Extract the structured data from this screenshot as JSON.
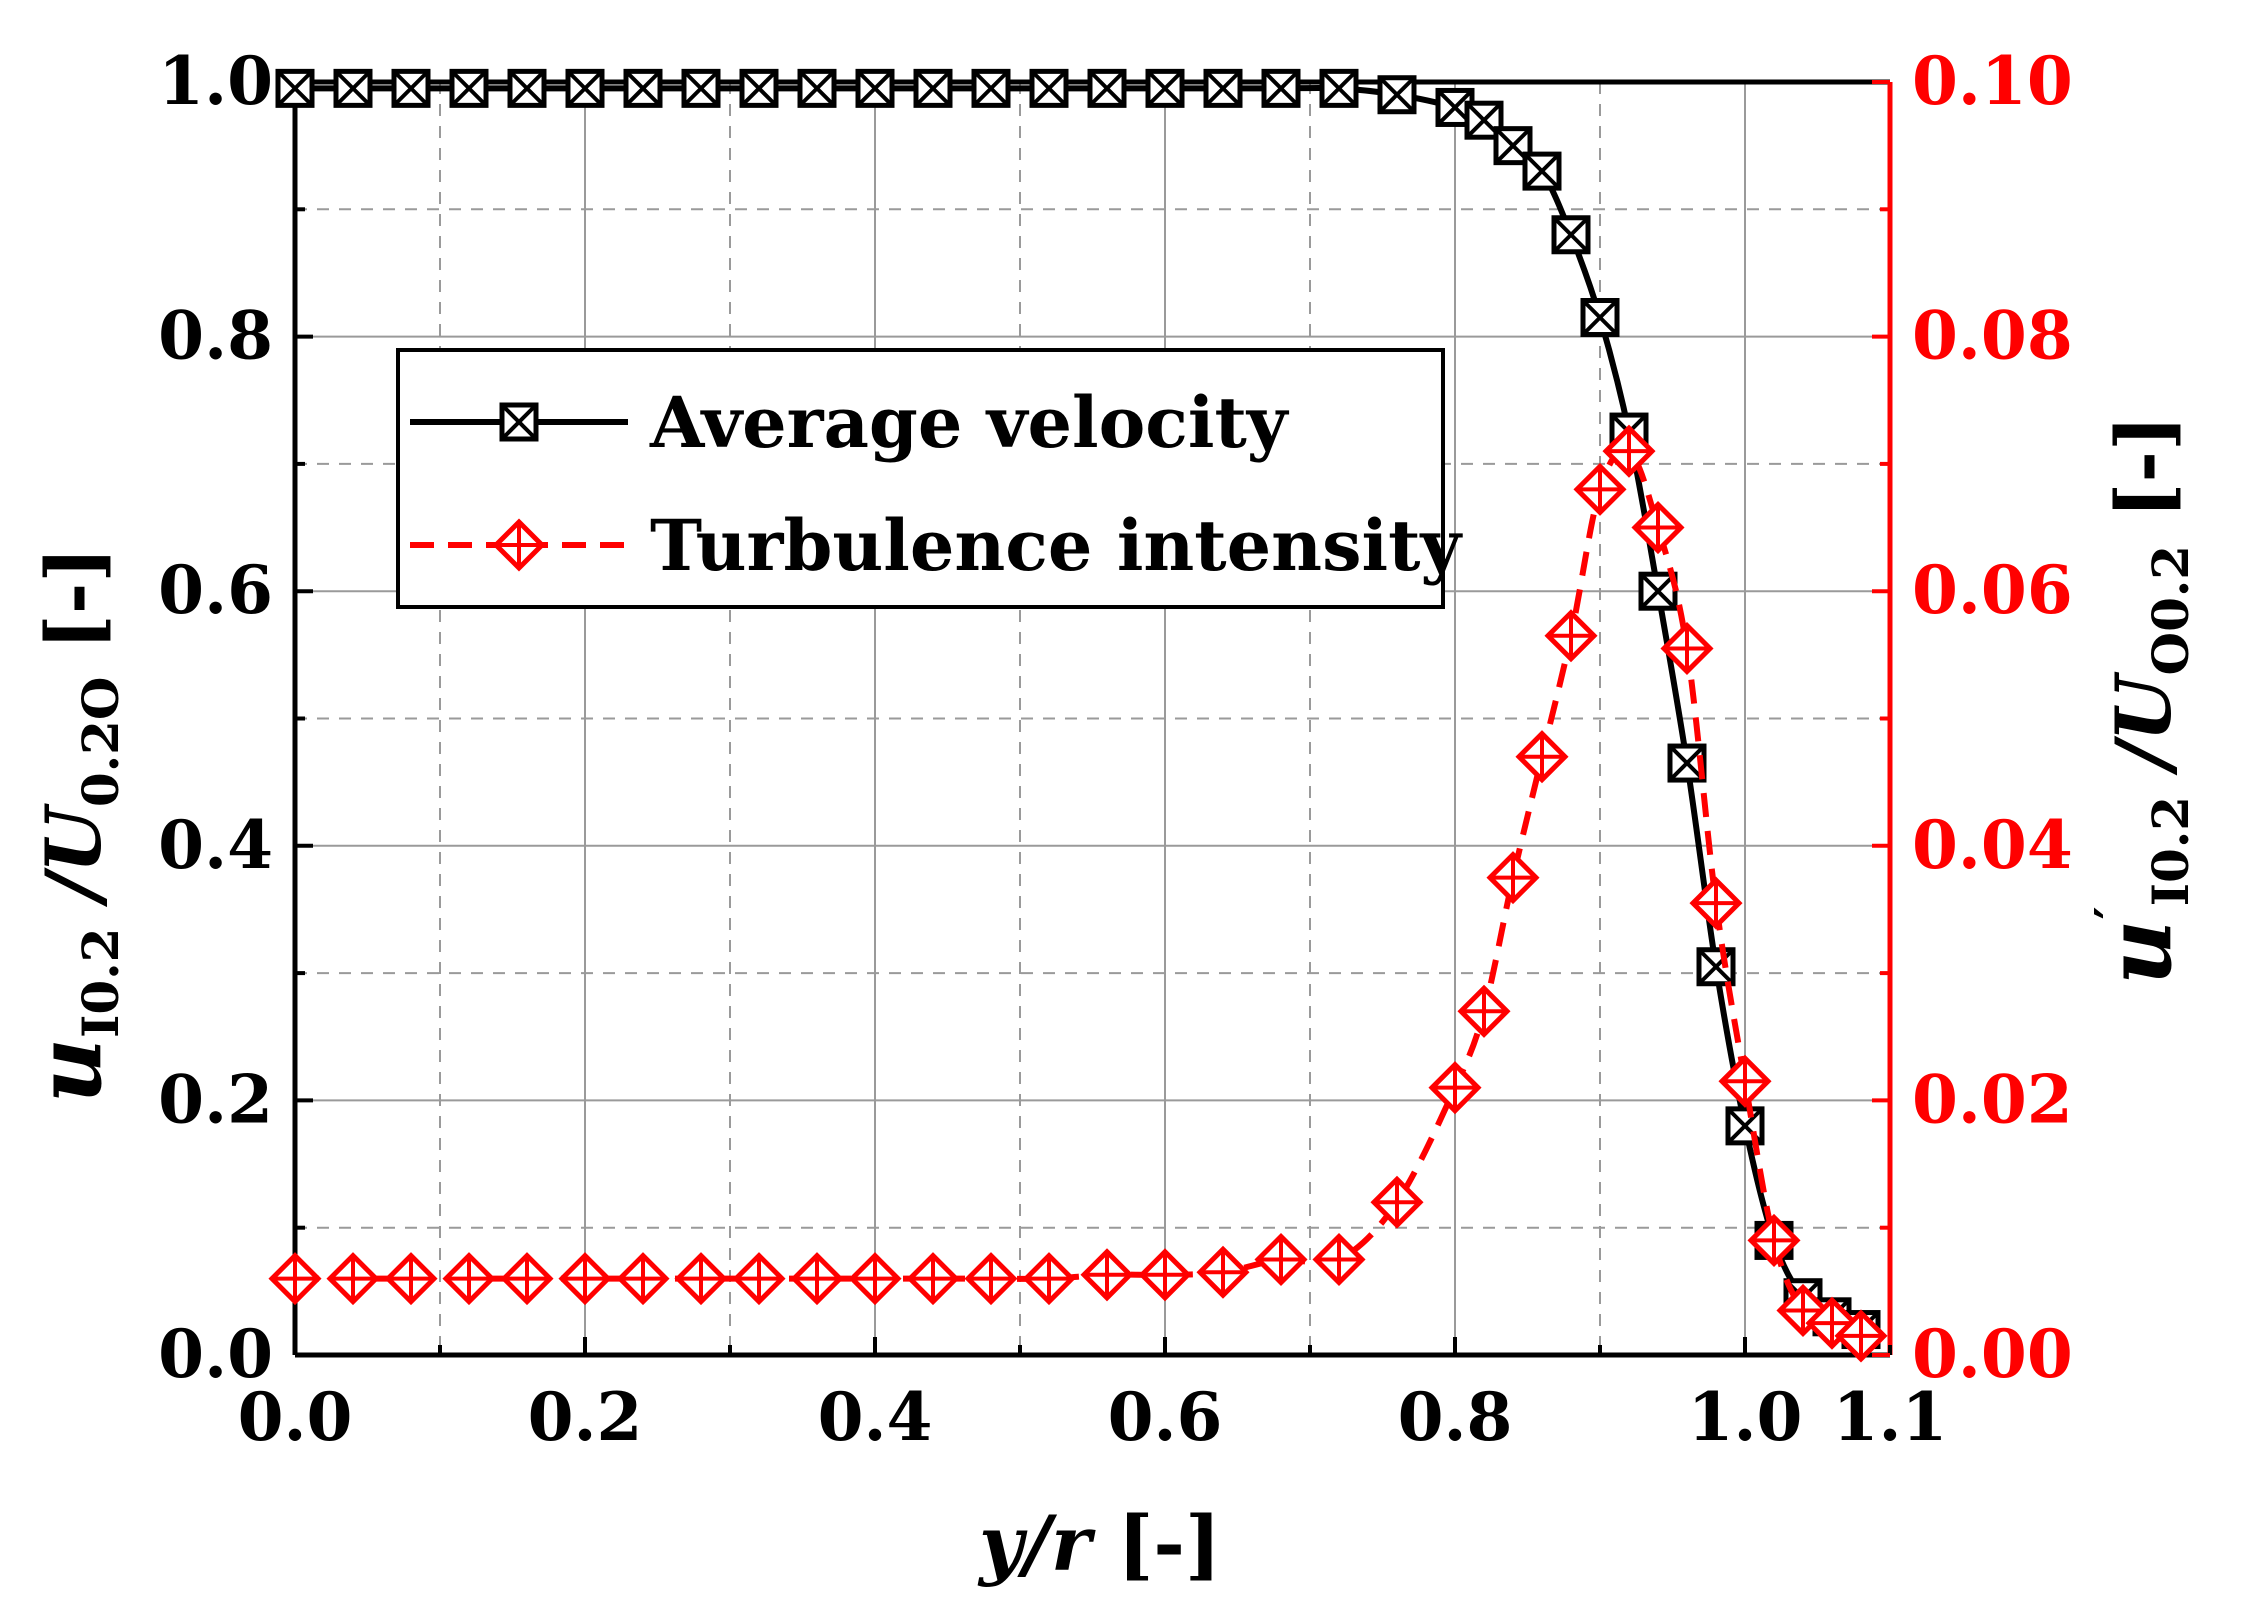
{
  "chart_data": {
    "type": "line",
    "xlabel_italic": "y/r",
    "xlabel_rest": " [-]",
    "ylabel_left": {
      "main": "u",
      "sub1": "I0.2",
      "mid": " /U",
      "sub2": "0.2O",
      "tail": " [-]"
    },
    "ylabel_right": {
      "main": "u",
      "prime": "′",
      "sub1": "I0.2",
      "mid": " /U",
      "sub2": "O0.2",
      "tail": " [-]"
    },
    "xlim": [
      0,
      1.1
    ],
    "ylim_left": [
      0,
      1.0
    ],
    "ylim_right": [
      0,
      0.1
    ],
    "x_ticks": [
      "0.0",
      "0.2",
      "0.4",
      "0.6",
      "0.8",
      "1.0",
      "1.1"
    ],
    "x_tick_values": [
      0,
      0.2,
      0.4,
      0.6,
      0.8,
      1.0,
      1.1
    ],
    "y_left_ticks": [
      "0.0",
      "0.2",
      "0.4",
      "0.6",
      "0.8",
      "1.0"
    ],
    "y_left_tick_values": [
      0,
      0.2,
      0.4,
      0.6,
      0.8,
      1.0
    ],
    "y_right_ticks": [
      "0.00",
      "0.02",
      "0.04",
      "0.06",
      "0.08",
      "0.10"
    ],
    "y_right_tick_values": [
      0,
      0.02,
      0.04,
      0.06,
      0.08,
      0.1
    ],
    "grid": true,
    "legend": {
      "position": "upper-left-center",
      "entries": [
        "Average velocity",
        "Turbulence intensity"
      ]
    },
    "colors": {
      "velocity": "#000000",
      "turbulence": "#ff0000"
    },
    "series": [
      {
        "name": "Average velocity",
        "axis": "left",
        "marker": "square-x",
        "line": "solid",
        "x": [
          0,
          0.04,
          0.08,
          0.12,
          0.16,
          0.2,
          0.24,
          0.28,
          0.32,
          0.36,
          0.4,
          0.44,
          0.48,
          0.52,
          0.56,
          0.6,
          0.64,
          0.68,
          0.72,
          0.76,
          0.8,
          0.82,
          0.84,
          0.86,
          0.88,
          0.9,
          0.92,
          0.94,
          0.96,
          0.98,
          1.0,
          1.02,
          1.04,
          1.06,
          1.08
        ],
        "y": [
          0.995,
          0.995,
          0.995,
          0.995,
          0.995,
          0.995,
          0.995,
          0.995,
          0.995,
          0.995,
          0.995,
          0.995,
          0.995,
          0.995,
          0.995,
          0.995,
          0.995,
          0.995,
          0.995,
          0.99,
          0.98,
          0.97,
          0.95,
          0.93,
          0.88,
          0.815,
          0.725,
          0.6,
          0.465,
          0.305,
          0.18,
          0.09,
          0.045,
          0.03,
          0.02
        ]
      },
      {
        "name": "Turbulence intensity",
        "axis": "right",
        "marker": "diamond-plus",
        "line": "dashed",
        "x": [
          0,
          0.04,
          0.08,
          0.12,
          0.16,
          0.2,
          0.24,
          0.28,
          0.32,
          0.36,
          0.4,
          0.44,
          0.48,
          0.52,
          0.56,
          0.6,
          0.64,
          0.68,
          0.72,
          0.76,
          0.8,
          0.82,
          0.84,
          0.86,
          0.88,
          0.9,
          0.92,
          0.94,
          0.96,
          0.98,
          1.0,
          1.02,
          1.04,
          1.06,
          1.08
        ],
        "y": [
          0.006,
          0.006,
          0.006,
          0.006,
          0.006,
          0.006,
          0.006,
          0.006,
          0.006,
          0.006,
          0.006,
          0.006,
          0.006,
          0.006,
          0.0063,
          0.0063,
          0.0065,
          0.0075,
          0.0075,
          0.012,
          0.021,
          0.027,
          0.0375,
          0.047,
          0.0565,
          0.068,
          0.071,
          0.065,
          0.0555,
          0.0355,
          0.0215,
          0.009,
          0.0035,
          0.0025,
          0.0015
        ]
      }
    ]
  }
}
